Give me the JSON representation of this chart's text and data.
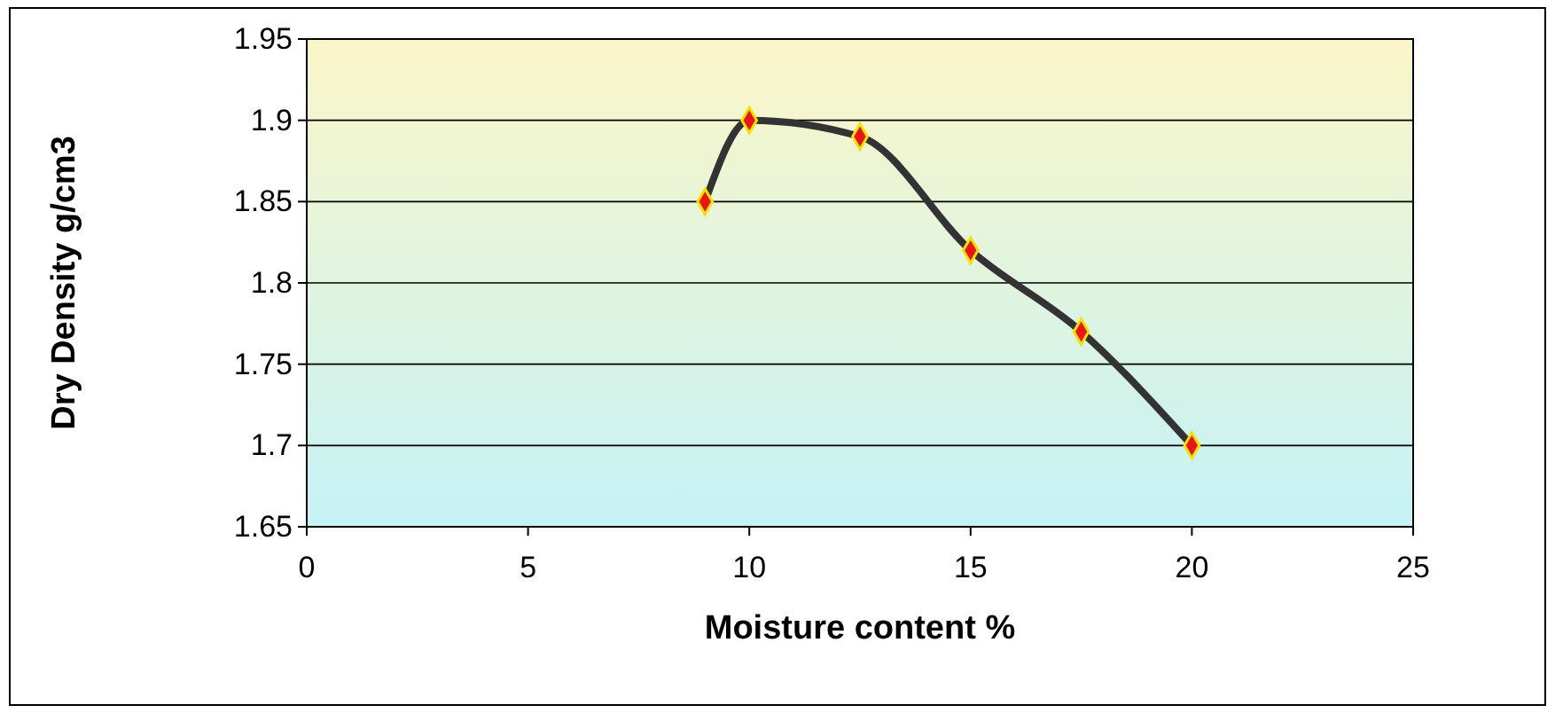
{
  "chart_data": {
    "type": "line",
    "xlabel": "Moisture content %",
    "ylabel": "Dry Density g/cm3",
    "x": [
      9,
      10,
      12.5,
      15,
      17.5,
      20
    ],
    "series": [
      {
        "color": "#333333",
        "values": [
          1.85,
          1.9,
          1.89,
          1.82,
          1.77,
          1.7
        ]
      }
    ],
    "xlim": [
      0,
      25
    ],
    "xticks": [
      0,
      5,
      10,
      15,
      20,
      25
    ],
    "ylim": [
      1.65,
      1.95
    ],
    "yticks": [
      1.65,
      1.7,
      1.75,
      1.8,
      1.85,
      1.9,
      1.95
    ],
    "grid": "y",
    "marker": "diamond",
    "line_style": "solid"
  }
}
